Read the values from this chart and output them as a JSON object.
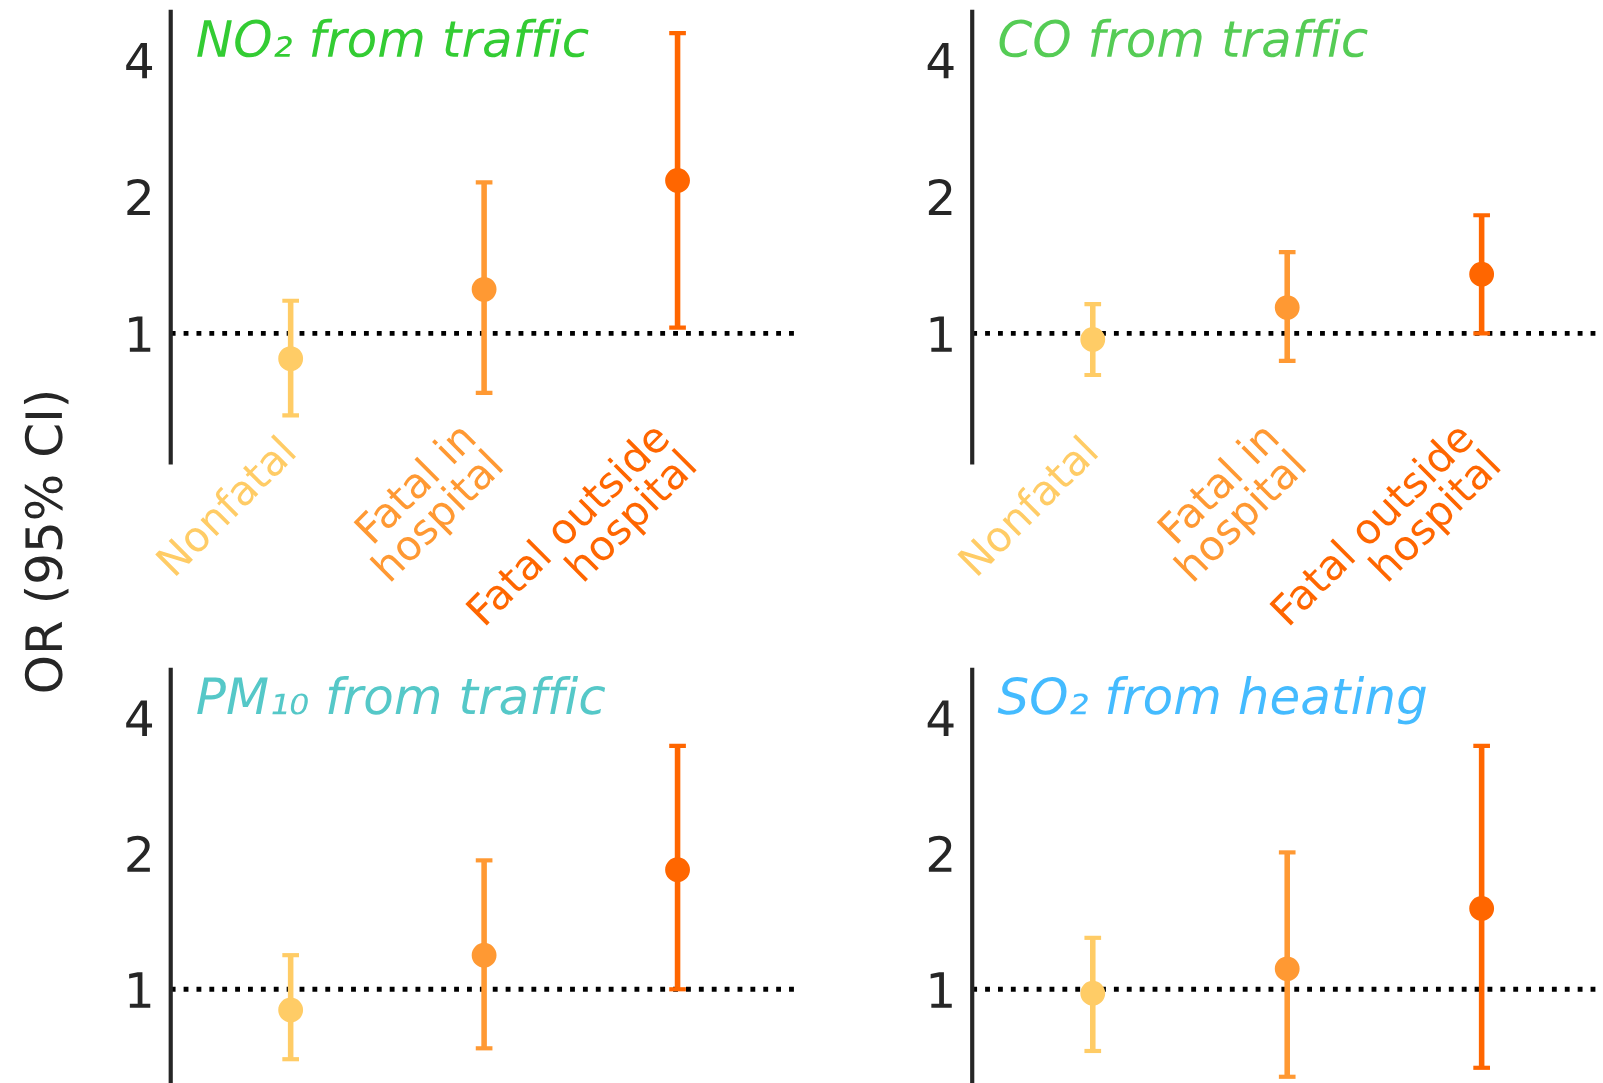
{
  "chart_data": [
    {
      "type": "scatter",
      "title": "NO₂ from traffic",
      "ylabel": "OR (95% CI)",
      "categories": [
        "Nonfatal",
        "Fatal in\nhospital",
        "Fatal outside\nhospital"
      ],
      "log": "y",
      "ylim": [
        0.52,
        5.1
      ],
      "yticks": [
        1,
        2,
        4
      ],
      "grid": false,
      "legend": false,
      "marker": "circle",
      "series": [
        {
          "colors": [
            "#ffcc66",
            "#ff9933",
            "#ff6600"
          ],
          "values": [
            0.88,
            1.25,
            2.17
          ],
          "errors": [
            [
              0.66,
              1.18
            ],
            [
              0.74,
              2.15
            ],
            [
              1.03,
              4.58
            ]
          ]
        }
      ],
      "ref_lines": [
        {
          "axis": "y",
          "value": 1,
          "line_style": "dotted",
          "color": "#000000"
        }
      ]
    },
    {
      "type": "scatter",
      "title": "CO from traffic",
      "categories": [
        "Nonfatal",
        "Fatal in\nhospital",
        "Fatal outside\nhospital"
      ],
      "log": "y",
      "ylim": [
        0.52,
        5.1
      ],
      "yticks": [
        1,
        2,
        4
      ],
      "grid": false,
      "legend": false,
      "marker": "circle",
      "series": [
        {
          "colors": [
            "#ffcc66",
            "#ff9933",
            "#ff6600"
          ],
          "values": [
            0.97,
            1.14,
            1.35
          ],
          "errors": [
            [
              0.81,
              1.16
            ],
            [
              0.87,
              1.51
            ],
            [
              1.0,
              1.82
            ]
          ]
        }
      ],
      "ref_lines": [
        {
          "axis": "y",
          "value": 1,
          "line_style": "dotted",
          "color": "#000000"
        }
      ]
    },
    {
      "type": "scatter",
      "title": "PM₁₀ from traffic",
      "categories": [
        null,
        null,
        null
      ],
      "tick_labels": "y",
      "log": "y",
      "ylim": [
        0.62,
        5.1
      ],
      "yticks": [
        1,
        2,
        4
      ],
      "grid": false,
      "legend": false,
      "marker": "circle",
      "series": [
        {
          "colors": [
            "#ffcc66",
            "#ff9933",
            "#ff6600"
          ],
          "values": [
            0.9,
            1.19,
            1.84
          ],
          "errors": [
            [
              0.7,
              1.19
            ],
            [
              0.74,
              1.93
            ],
            [
              1.0,
              3.46
            ]
          ]
        }
      ],
      "ref_lines": [
        {
          "axis": "y",
          "value": 1,
          "line_style": "dotted",
          "color": "#000000"
        }
      ]
    },
    {
      "type": "scatter",
      "title": "SO₂ from heating",
      "categories": [
        null,
        null,
        null
      ],
      "tick_labels": "y",
      "log": "y",
      "ylim": [
        0.62,
        5.1
      ],
      "yticks": [
        1,
        2,
        4
      ],
      "grid": false,
      "legend": false,
      "marker": "circle",
      "series": [
        {
          "colors": [
            "#ffcc66",
            "#ff9933",
            "#ff6600"
          ],
          "values": [
            0.98,
            1.11,
            1.51
          ],
          "errors": [
            [
              0.73,
              1.3
            ],
            [
              0.64,
              2.01
            ],
            [
              0.67,
              3.46
            ]
          ]
        }
      ],
      "ref_lines": [
        {
          "axis": "y",
          "value": 1,
          "line_style": "dotted",
          "color": "#000000"
        }
      ]
    }
  ]
}
